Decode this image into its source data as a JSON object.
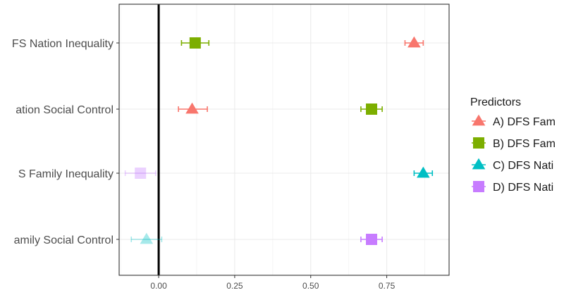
{
  "chart_data": {
    "type": "scatter",
    "subtype": "coefficient-plot-with-error-bars",
    "title": "",
    "xlabel": "",
    "ylabel": "",
    "xlim": [
      -0.13,
      0.955
    ],
    "x_ticks": [
      0.0,
      0.25,
      0.5,
      0.75
    ],
    "x_tick_labels": [
      "0.00",
      "0.25",
      "0.50",
      "0.75"
    ],
    "reference_line_x": 0,
    "grid": true,
    "legend_position": "right",
    "legend_title": "Predictors",
    "categories": [
      "FS Nation Inequality",
      "ation Social Control",
      "S Family Inequality",
      "amily Social Control"
    ],
    "series": [
      {
        "name": "A) DFS Fam",
        "shape": "triangle",
        "color": "#F8766D"
      },
      {
        "name": "B) DFS Fam",
        "shape": "square",
        "color": "#7CAE00"
      },
      {
        "name": "C) DFS Nati",
        "shape": "triangle",
        "color": "#00BFC4"
      },
      {
        "name": "D) DFS Nati",
        "shape": "square",
        "color": "#C77CFF"
      }
    ],
    "points": [
      {
        "category": "FS Nation Inequality",
        "series": "B) DFS Fam",
        "x": 0.12,
        "lo": 0.075,
        "hi": 0.165,
        "faded": false
      },
      {
        "category": "FS Nation Inequality",
        "series": "A) DFS Fam",
        "x": 0.84,
        "lo": 0.81,
        "hi": 0.87,
        "faded": false
      },
      {
        "category": "ation Social Control",
        "series": "A) DFS Fam",
        "x": 0.11,
        "lo": 0.065,
        "hi": 0.16,
        "faded": false
      },
      {
        "category": "ation Social Control",
        "series": "B) DFS Fam",
        "x": 0.7,
        "lo": 0.665,
        "hi": 0.735,
        "faded": false
      },
      {
        "category": "S Family Inequality",
        "series": "D) DFS Nati",
        "x": -0.06,
        "lo": -0.11,
        "hi": -0.01,
        "faded": true
      },
      {
        "category": "S Family Inequality",
        "series": "C) DFS Nati",
        "x": 0.87,
        "lo": 0.84,
        "hi": 0.9,
        "faded": false
      },
      {
        "category": "amily Social Control",
        "series": "C) DFS Nati",
        "x": -0.04,
        "lo": -0.09,
        "hi": 0.01,
        "faded": true
      },
      {
        "category": "amily Social Control",
        "series": "D) DFS Nati",
        "x": 0.7,
        "lo": 0.665,
        "hi": 0.735,
        "faded": false
      }
    ]
  }
}
